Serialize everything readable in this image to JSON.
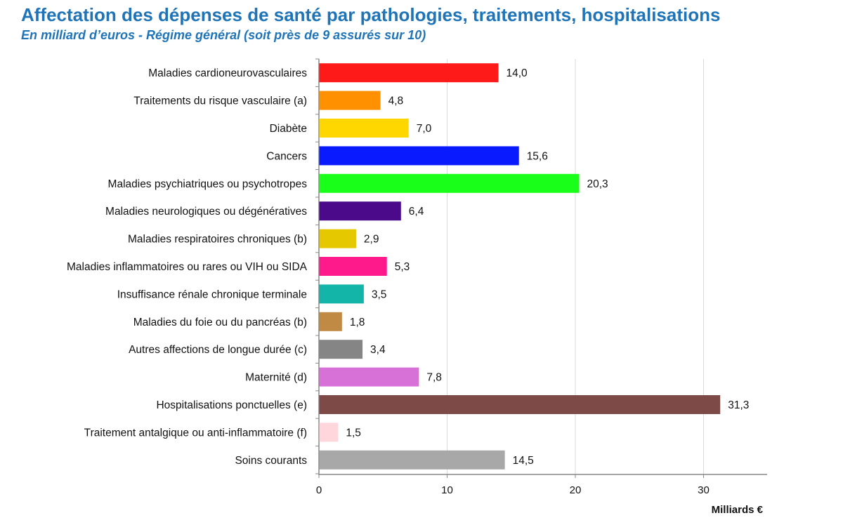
{
  "chart_data": {
    "type": "bar",
    "orientation": "horizontal",
    "title": "Affectation des dépenses de santé par pathologies, traitements, hospitalisations",
    "subtitle": "En milliard d’euros - Régime général (soit près de 9 assurés sur 10)",
    "xlabel": "Milliards €",
    "xlim": [
      0,
      35
    ],
    "xticks": [
      0,
      10,
      20,
      30
    ],
    "grid": "vertical",
    "categories": [
      "Maladies cardioneurovasculaires",
      "Traitements du risque vasculaire (a)",
      "Diabète",
      "Cancers",
      "Maladies psychiatriques ou psychotropes",
      "Maladies neurologiques ou dégénératives",
      "Maladies respiratoires chroniques (b)",
      "Maladies inflammatoires ou rares ou VIH ou SIDA",
      "Insuffisance rénale chronique terminale",
      "Maladies du foie ou du pancréas (b)",
      "Autres affections de longue durée (c)",
      "Maternité (d)",
      "Hospitalisations ponctuelles (e)",
      "Traitement antalgique ou anti-inflammatoire (f)",
      "Soins courants"
    ],
    "values": [
      14.0,
      4.8,
      7.0,
      15.6,
      20.3,
      6.4,
      2.9,
      5.3,
      3.5,
      1.8,
      3.4,
      7.8,
      31.3,
      1.5,
      14.5
    ],
    "value_labels": [
      "14,0",
      "4,8",
      "7,0",
      "15,6",
      "20,3",
      "6,4",
      "2,9",
      "5,3",
      "3,5",
      "1,8",
      "3,4",
      "7,8",
      "31,3",
      "1,5",
      "14,5"
    ],
    "colors": [
      "#ff1a1a",
      "#ff9100",
      "#ffd700",
      "#0a1aff",
      "#1aff1a",
      "#4a0a8a",
      "#e6c800",
      "#ff1a8c",
      "#12b5a8",
      "#c08a44",
      "#858585",
      "#d770d7",
      "#7e4a48",
      "#ffd6dc",
      "#a8a8a8"
    ]
  }
}
